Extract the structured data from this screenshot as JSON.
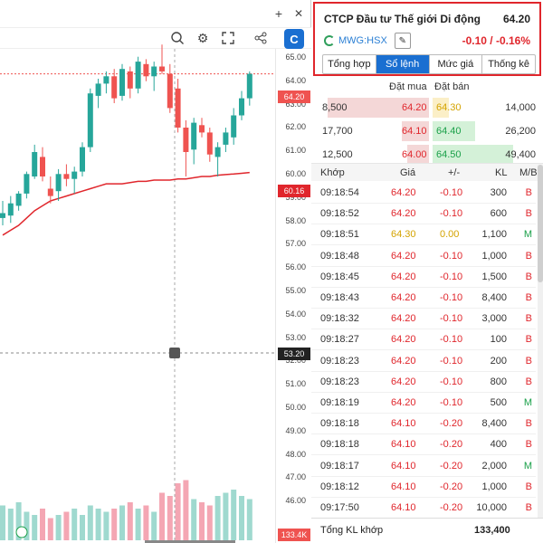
{
  "chart": {
    "toolbar": {
      "add_icon": "plus-icon",
      "close_icon": "close-icon",
      "zoom_icon": "magnify-icon",
      "settings_icon": "gear-icon",
      "fullscreen_icon": "fullscreen-icon",
      "share_icon": "share-icon",
      "logo_icon": "brand-logo-icon"
    },
    "price_ticks": [
      "65.00",
      "64.00",
      "63.00",
      "62.00",
      "61.00",
      "60.00",
      "59.00",
      "58.00",
      "57.00",
      "56.00",
      "55.00",
      "54.00",
      "53.00",
      "52.00",
      "51.00",
      "50.00",
      "49.00",
      "48.00",
      "47.00",
      "46.00"
    ],
    "last_price_tag": "64.20",
    "ma_tag": "60.16",
    "crosshair_tag": "53.20",
    "volume_tag": "133.4K",
    "colors": {
      "up": "#26a69a",
      "down": "#ef5350",
      "ma": "#e0262c",
      "vol_up": "#9fd9cf",
      "vol_down": "#f4a6b3"
    }
  },
  "chart_data": {
    "type": "candlestick",
    "y_range": [
      45.6,
      65.4
    ],
    "last_price": 64.2,
    "candles": [
      {
        "o": 58.3,
        "h": 59.0,
        "l": 58.0,
        "c": 58.5
      },
      {
        "o": 58.4,
        "h": 59.2,
        "l": 58.1,
        "c": 58.9
      },
      {
        "o": 58.8,
        "h": 59.4,
        "l": 58.6,
        "c": 59.3
      },
      {
        "o": 59.3,
        "h": 60.2,
        "l": 59.1,
        "c": 60.1
      },
      {
        "o": 60.0,
        "h": 61.3,
        "l": 59.9,
        "c": 61.0
      },
      {
        "o": 60.8,
        "h": 61.2,
        "l": 59.8,
        "c": 60.0
      },
      {
        "o": 59.5,
        "h": 60.0,
        "l": 58.9,
        "c": 59.2
      },
      {
        "o": 59.4,
        "h": 60.3,
        "l": 59.0,
        "c": 60.1
      },
      {
        "o": 60.1,
        "h": 60.5,
        "l": 59.6,
        "c": 59.9
      },
      {
        "o": 59.9,
        "h": 60.4,
        "l": 59.3,
        "c": 60.2
      },
      {
        "o": 60.2,
        "h": 61.4,
        "l": 60.0,
        "c": 61.2
      },
      {
        "o": 61.2,
        "h": 63.6,
        "l": 61.0,
        "c": 63.4
      },
      {
        "o": 63.3,
        "h": 64.0,
        "l": 62.8,
        "c": 63.8
      },
      {
        "o": 63.8,
        "h": 64.3,
        "l": 63.4,
        "c": 64.1
      },
      {
        "o": 64.1,
        "h": 64.4,
        "l": 63.0,
        "c": 63.2
      },
      {
        "o": 63.3,
        "h": 64.6,
        "l": 63.1,
        "c": 64.4
      },
      {
        "o": 64.3,
        "h": 64.5,
        "l": 63.2,
        "c": 63.6
      },
      {
        "o": 63.6,
        "h": 64.9,
        "l": 63.4,
        "c": 64.7
      },
      {
        "o": 64.6,
        "h": 64.8,
        "l": 63.9,
        "c": 64.1
      },
      {
        "o": 64.1,
        "h": 64.7,
        "l": 63.5,
        "c": 64.5
      },
      {
        "o": 64.5,
        "h": 65.4,
        "l": 64.2,
        "c": 64.3
      },
      {
        "o": 64.2,
        "h": 64.6,
        "l": 62.6,
        "c": 62.8
      },
      {
        "o": 63.6,
        "h": 64.0,
        "l": 61.8,
        "c": 62.0
      },
      {
        "o": 62.0,
        "h": 62.3,
        "l": 60.0,
        "c": 61.0
      },
      {
        "o": 61.1,
        "h": 62.4,
        "l": 60.5,
        "c": 62.2
      },
      {
        "o": 62.1,
        "h": 62.4,
        "l": 61.6,
        "c": 61.8
      },
      {
        "o": 61.8,
        "h": 62.0,
        "l": 60.6,
        "c": 60.9
      },
      {
        "o": 60.8,
        "h": 61.4,
        "l": 60.0,
        "c": 61.2
      },
      {
        "o": 61.3,
        "h": 62.0,
        "l": 61.0,
        "c": 61.8
      },
      {
        "o": 61.6,
        "h": 62.8,
        "l": 61.3,
        "c": 62.5
      },
      {
        "o": 62.5,
        "h": 63.5,
        "l": 62.3,
        "c": 63.2
      },
      {
        "o": 63.2,
        "h": 64.3,
        "l": 62.9,
        "c": 64.2
      }
    ],
    "ma_line": [
      57.6,
      57.8,
      58.0,
      58.3,
      58.6,
      58.8,
      59.0,
      59.1,
      59.2,
      59.3,
      59.4,
      59.5,
      59.6,
      59.7,
      59.7,
      59.7,
      59.75,
      59.8,
      59.8,
      59.85,
      59.85,
      59.85,
      59.9,
      59.9,
      59.95,
      60.0,
      60.0,
      60.05,
      60.08,
      60.1,
      60.13,
      60.16
    ],
    "volume": [
      0.55,
      0.5,
      0.6,
      0.45,
      0.4,
      0.5,
      0.35,
      0.4,
      0.45,
      0.5,
      0.4,
      0.55,
      0.5,
      0.45,
      0.5,
      0.55,
      0.6,
      0.5,
      0.55,
      0.45,
      0.75,
      0.7,
      0.9,
      0.95,
      0.65,
      0.6,
      0.55,
      0.7,
      0.75,
      0.8,
      0.7,
      0.65
    ]
  },
  "panel": {
    "company_name": "CTCP Đầu tư Thế giới Di động",
    "last_price": "64.20",
    "symbol": "MWG:HSX",
    "symbol_icon": "refresh-icon",
    "edit_icon": "pencil-icon",
    "change": "-0.10 / -0.16%",
    "tabs": [
      {
        "label": "Tổng hợp",
        "active": false
      },
      {
        "label": "Sổ lệnh",
        "active": true
      },
      {
        "label": "Mức giá",
        "active": false
      },
      {
        "label": "Thống kê",
        "active": false
      }
    ]
  },
  "orderbook": {
    "header_buy": "Đặt mua",
    "header_sell": "Đặt bán",
    "rows": [
      {
        "bid_vol": "8,500",
        "bid": "64.20",
        "ask": "64.30",
        "ask_vol": "14,000",
        "bid_frac": 0.95,
        "ask_frac": 0.15
      },
      {
        "bid_vol": "17,700",
        "bid": "64.10",
        "ask": "64.40",
        "ask_vol": "26,200",
        "bid_frac": 0.25,
        "ask_frac": 0.4
      },
      {
        "bid_vol": "12,500",
        "bid": "64.00",
        "ask": "64.50",
        "ask_vol": "49,400",
        "bid_frac": 0.2,
        "ask_frac": 0.75
      }
    ]
  },
  "trades": {
    "headers": {
      "time": "Khớp",
      "price": "Giá",
      "change": "+/-",
      "vol": "KL",
      "side": "M/B"
    },
    "rows": [
      {
        "time": "09:18:54",
        "price": "64.20",
        "change": "-0.10",
        "vol": "300",
        "side": "B",
        "color": "red"
      },
      {
        "time": "09:18:52",
        "price": "64.20",
        "change": "-0.10",
        "vol": "600",
        "side": "B",
        "color": "red"
      },
      {
        "time": "09:18:51",
        "price": "64.30",
        "change": "0.00",
        "vol": "1,100",
        "side": "M",
        "color": "yellow"
      },
      {
        "time": "09:18:48",
        "price": "64.20",
        "change": "-0.10",
        "vol": "1,000",
        "side": "B",
        "color": "red"
      },
      {
        "time": "09:18:45",
        "price": "64.20",
        "change": "-0.10",
        "vol": "1,500",
        "side": "B",
        "color": "red"
      },
      {
        "time": "09:18:43",
        "price": "64.20",
        "change": "-0.10",
        "vol": "8,400",
        "side": "B",
        "color": "red"
      },
      {
        "time": "09:18:32",
        "price": "64.20",
        "change": "-0.10",
        "vol": "3,000",
        "side": "B",
        "color": "red"
      },
      {
        "time": "09:18:27",
        "price": "64.20",
        "change": "-0.10",
        "vol": "100",
        "side": "B",
        "color": "red"
      },
      {
        "time": "09:18:23",
        "price": "64.20",
        "change": "-0.10",
        "vol": "200",
        "side": "B",
        "color": "red"
      },
      {
        "time": "09:18:23",
        "price": "64.20",
        "change": "-0.10",
        "vol": "800",
        "side": "B",
        "color": "red"
      },
      {
        "time": "09:18:19",
        "price": "64.20",
        "change": "-0.10",
        "vol": "500",
        "side": "M",
        "color": "red"
      },
      {
        "time": "09:18:18",
        "price": "64.10",
        "change": "-0.20",
        "vol": "8,400",
        "side": "B",
        "color": "red"
      },
      {
        "time": "09:18:18",
        "price": "64.10",
        "change": "-0.20",
        "vol": "400",
        "side": "B",
        "color": "red"
      },
      {
        "time": "09:18:17",
        "price": "64.10",
        "change": "-0.20",
        "vol": "2,000",
        "side": "M",
        "color": "red"
      },
      {
        "time": "09:18:12",
        "price": "64.10",
        "change": "-0.20",
        "vol": "1,000",
        "side": "B",
        "color": "red"
      },
      {
        "time": "09:17:50",
        "price": "64.10",
        "change": "-0.20",
        "vol": "10,000",
        "side": "B",
        "color": "red"
      }
    ],
    "footer_label": "Tổng KL khớp",
    "footer_value": "133,400"
  }
}
